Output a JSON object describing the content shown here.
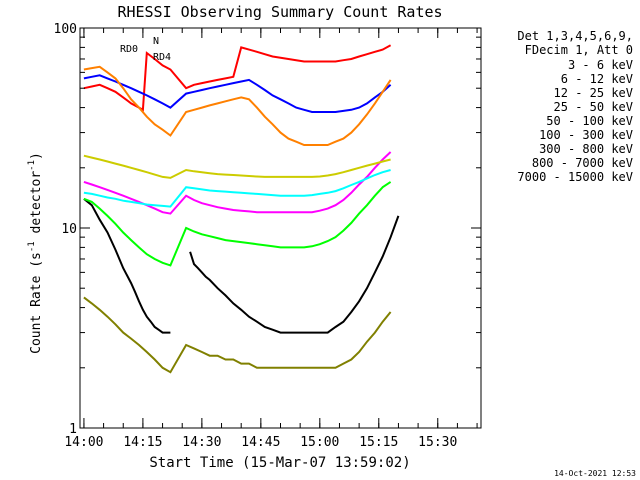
{
  "chart_data": {
    "type": "line",
    "title": "RHESSI Observing Summary Count Rates",
    "xlabel": "Start Time (15-Mar-07 13:59:02)",
    "ylabel_pre": "Count Rate (s",
    "ylabel_sup": "-1",
    "ylabel_post": " detector",
    "ylabel_end": ")",
    "yscale": "log",
    "ylim": [
      1,
      100
    ],
    "y_ticks": [
      "1",
      "10",
      "100"
    ],
    "x_ticks": [
      "14:00",
      "14:15",
      "14:30",
      "14:45",
      "15:00",
      "15:15",
      "15:30"
    ],
    "x_tick_minutes": [
      0,
      15,
      30,
      45,
      60,
      75,
      90
    ],
    "xlim_minutes": [
      -1,
      101
    ],
    "legend_header": [
      "Det 1,3,4,5,6,9,",
      "FDecim 1, Att 0"
    ],
    "series": [
      {
        "name": "3 - 6 keV",
        "color": "#000000",
        "x": [
          0,
          2,
          4,
          6,
          8,
          10,
          12,
          13,
          14,
          15,
          16,
          17,
          18,
          19,
          20,
          21,
          22,
          26,
          27,
          28,
          29,
          30,
          31,
          32,
          34,
          36,
          38,
          40,
          42,
          44,
          46,
          48,
          50,
          52,
          54,
          56,
          58,
          60,
          62,
          64,
          66,
          68,
          70,
          72,
          74,
          76,
          78,
          80,
          82,
          84,
          86,
          88,
          90,
          92,
          94,
          96,
          98,
          100
        ],
        "y": [
          14,
          13,
          11,
          9.5,
          7.8,
          6.3,
          5.3,
          4.8,
          4.3,
          3.9,
          3.6,
          3.4,
          3.2,
          3.1,
          3,
          3,
          3,
          null,
          7.6,
          6.6,
          6.3,
          6,
          5.7,
          5.5,
          5,
          4.6,
          4.2,
          3.9,
          3.6,
          3.4,
          3.2,
          3.1,
          3,
          3,
          3,
          3,
          3,
          3,
          3,
          3.2,
          3.4,
          3.8,
          4.3,
          5,
          6,
          7.2,
          9,
          11.5,
          null,
          null,
          null,
          null,
          null,
          null,
          null,
          null,
          null,
          null
        ]
      },
      {
        "name": "6 - 12 keV",
        "color": "#ff00ff",
        "x": [
          0,
          2,
          4,
          6,
          8,
          10,
          12,
          14,
          16,
          18,
          20,
          22,
          26,
          28,
          30,
          32,
          34,
          36,
          38,
          40,
          42,
          44,
          46,
          48,
          50,
          52,
          54,
          56,
          58,
          60,
          62,
          64,
          66,
          68,
          70,
          72,
          74,
          76,
          78
        ],
        "y": [
          17,
          16.5,
          16,
          15.5,
          15,
          14.5,
          14,
          13.5,
          13,
          12.5,
          12,
          11.8,
          14.5,
          13.8,
          13.3,
          13,
          12.7,
          12.5,
          12.3,
          12.2,
          12.1,
          12,
          12,
          12,
          12,
          12,
          12,
          12,
          12,
          12.2,
          12.5,
          13,
          13.8,
          15,
          16.5,
          18,
          20,
          22,
          24
        ]
      },
      {
        "name": "12 - 25 keV",
        "color": "#00ff00",
        "x": [
          0,
          2,
          4,
          6,
          8,
          10,
          12,
          14,
          16,
          18,
          20,
          22,
          26,
          28,
          30,
          32,
          34,
          36,
          38,
          40,
          42,
          44,
          46,
          48,
          50,
          52,
          54,
          56,
          58,
          60,
          62,
          64,
          66,
          68,
          70,
          72,
          74,
          76,
          78
        ],
        "y": [
          14,
          13.5,
          12.5,
          11.5,
          10.5,
          9.5,
          8.7,
          8,
          7.4,
          7,
          6.7,
          6.5,
          10,
          9.6,
          9.3,
          9.1,
          8.9,
          8.7,
          8.6,
          8.5,
          8.4,
          8.3,
          8.2,
          8.1,
          8,
          8,
          8,
          8,
          8.1,
          8.3,
          8.6,
          9,
          9.7,
          10.6,
          11.8,
          13,
          14.5,
          16,
          17
        ]
      },
      {
        "name": "25 - 50 keV",
        "color": "#00ffff",
        "x": [
          0,
          2,
          4,
          6,
          8,
          10,
          12,
          14,
          16,
          18,
          20,
          22,
          26,
          28,
          30,
          32,
          34,
          36,
          38,
          40,
          42,
          44,
          46,
          48,
          50,
          52,
          54,
          56,
          58,
          60,
          62,
          64,
          66,
          68,
          70,
          72,
          74,
          76,
          78
        ],
        "y": [
          15,
          14.8,
          14.5,
          14.2,
          14,
          13.7,
          13.5,
          13.3,
          13.1,
          13,
          12.9,
          12.8,
          16,
          15.8,
          15.6,
          15.4,
          15.3,
          15.2,
          15.1,
          15,
          14.9,
          14.8,
          14.7,
          14.6,
          14.5,
          14.5,
          14.5,
          14.5,
          14.6,
          14.8,
          15,
          15.3,
          15.8,
          16.4,
          17,
          17.7,
          18.4,
          19,
          19.5
        ]
      },
      {
        "name": "50 - 100 keV",
        "color": "#cccc00",
        "x": [
          0,
          2,
          4,
          6,
          8,
          10,
          12,
          14,
          16,
          18,
          20,
          22,
          26,
          28,
          30,
          32,
          34,
          36,
          38,
          40,
          42,
          44,
          46,
          48,
          50,
          52,
          54,
          56,
          58,
          60,
          62,
          64,
          66,
          68,
          70,
          72,
          74,
          76,
          78
        ],
        "y": [
          23,
          22.5,
          22,
          21.5,
          21,
          20.5,
          20,
          19.5,
          19,
          18.5,
          18,
          17.8,
          19.5,
          19.2,
          19,
          18.8,
          18.6,
          18.5,
          18.4,
          18.3,
          18.2,
          18.1,
          18,
          18,
          18,
          18,
          18,
          18,
          18,
          18.1,
          18.3,
          18.6,
          19,
          19.5,
          20,
          20.5,
          21,
          21.5,
          22
        ]
      },
      {
        "name": "100 - 300 keV",
        "color": "#ff0000",
        "x": [
          0,
          2,
          4,
          6,
          8,
          10,
          12,
          14,
          15,
          16,
          18,
          20,
          22,
          26,
          28,
          30,
          32,
          34,
          36,
          38,
          40,
          42,
          44,
          46,
          48,
          50,
          52,
          54,
          56,
          58,
          60,
          62,
          64,
          66,
          68,
          70,
          72,
          74,
          76,
          78
        ],
        "y": [
          50,
          51,
          52,
          50,
          48,
          45,
          42,
          40,
          39,
          75,
          70,
          65,
          62,
          50,
          52,
          53,
          54,
          55,
          56,
          57,
          80,
          78,
          76,
          74,
          72,
          71,
          70,
          69,
          68,
          68,
          68,
          68,
          68,
          69,
          70,
          72,
          74,
          76,
          78,
          82
        ]
      },
      {
        "name": "300 - 800 keV",
        "color": "#0000ff",
        "x": [
          0,
          2,
          4,
          6,
          8,
          10,
          12,
          14,
          16,
          18,
          20,
          22,
          26,
          28,
          30,
          32,
          34,
          36,
          38,
          40,
          42,
          44,
          46,
          48,
          50,
          52,
          54,
          56,
          58,
          60,
          62,
          64,
          66,
          68,
          70,
          72,
          74,
          76,
          78
        ],
        "y": [
          56,
          57,
          58,
          56,
          54,
          52,
          50,
          48,
          46,
          44,
          42,
          40,
          47,
          48,
          49,
          50,
          51,
          52,
          53,
          54,
          55,
          52,
          49,
          46,
          44,
          42,
          40,
          39,
          38,
          38,
          38,
          38,
          38.5,
          39,
          40,
          42,
          45,
          48,
          52
        ]
      },
      {
        "name": "800 - 7000 keV",
        "color": "#ff8000",
        "x": [
          0,
          2,
          4,
          6,
          8,
          10,
          12,
          14,
          16,
          18,
          20,
          22,
          26,
          28,
          30,
          32,
          34,
          36,
          38,
          40,
          42,
          44,
          46,
          48,
          50,
          52,
          54,
          56,
          58,
          60,
          62,
          64,
          66,
          68,
          70,
          72,
          74,
          76,
          78
        ],
        "y": [
          62,
          63,
          64,
          60,
          56,
          50,
          44,
          40,
          36,
          33,
          31,
          29,
          38,
          39,
          40,
          41,
          42,
          43,
          44,
          45,
          44,
          40,
          36,
          33,
          30,
          28,
          27,
          26,
          26,
          26,
          26,
          27,
          28,
          30,
          33,
          37,
          42,
          48,
          55
        ]
      },
      {
        "name": "7000 - 15000 keV",
        "color": "#808000",
        "x": [
          0,
          2,
          4,
          6,
          8,
          10,
          12,
          14,
          16,
          18,
          20,
          22,
          26,
          28,
          30,
          32,
          34,
          36,
          38,
          40,
          42,
          44,
          46,
          48,
          50,
          52,
          54,
          56,
          58,
          60,
          62,
          64,
          66,
          68,
          70,
          72,
          74,
          76,
          78
        ],
        "y": [
          4.5,
          4.2,
          3.9,
          3.6,
          3.3,
          3,
          2.8,
          2.6,
          2.4,
          2.2,
          2,
          1.9,
          2.6,
          2.5,
          2.4,
          2.3,
          2.3,
          2.2,
          2.2,
          2.1,
          2.1,
          2,
          2,
          2,
          2,
          2,
          2,
          2,
          2,
          2,
          2,
          2,
          2.1,
          2.2,
          2.4,
          2.7,
          3,
          3.4,
          3.8
        ]
      }
    ],
    "annotations": [
      {
        "text": "RD0",
        "color": "#008000"
      },
      {
        "text": "N",
        "color": "#00aaaa"
      },
      {
        "text": "RD4",
        "color": "#008000"
      }
    ],
    "footer_date": "14-Oct-2021 12:53"
  }
}
